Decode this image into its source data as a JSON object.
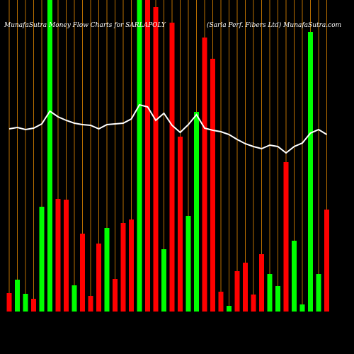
{
  "chart_data": {
    "type": "bar-line",
    "title": "MunafaSutra  Money Flow  Charts for SARLAPOLY",
    "subtitle": "(Sarla  Perf. Fibers Ltd) MunafaSutra.com",
    "values": [
      26,
      45,
      25,
      18,
      148,
      440,
      159,
      158,
      37,
      110,
      22,
      96,
      118,
      46,
      125,
      130,
      440,
      440,
      430,
      88,
      408,
      247,
      135,
      282,
      387,
      357,
      28,
      8,
      57,
      69,
      24,
      81,
      53,
      36,
      211,
      100,
      10,
      395,
      53,
      144
    ],
    "colors": [
      "#ff0000",
      "#00ff00",
      "#00ff00",
      "#ff0000",
      "#00ff00",
      "#00ff00",
      "#ff0000",
      "#ff0000",
      "#00ff00",
      "#ff0000",
      "#ff0000",
      "#ff0000",
      "#00ff00",
      "#ff0000",
      "#ff0000",
      "#ff0000",
      "#00ff00",
      "#ff0000",
      "#ff0000",
      "#00ff00",
      "#ff0000",
      "#ff0000",
      "#00ff00",
      "#00ff00",
      "#ff0000",
      "#ff0000",
      "#ff0000",
      "#00ff00",
      "#ff0000",
      "#ff0000",
      "#ff0000",
      "#ff0000",
      "#00ff00",
      "#00ff00",
      "#ff0000",
      "#00ff00",
      "#00ff00",
      "#00ff00",
      "#00ff00",
      "#ff0000"
    ],
    "line": [
      258,
      260,
      257,
      259,
      265,
      283,
      275,
      270,
      266,
      264,
      263,
      258,
      264,
      265,
      266,
      272,
      292,
      289,
      270,
      280,
      263,
      253,
      264,
      278,
      259,
      256,
      254,
      250,
      243,
      237,
      233,
      230,
      235,
      233,
      224,
      233,
      238,
      252,
      257,
      250
    ],
    "line_color": "#ffffff",
    "grid_color": "#b86e00",
    "ylim": [
      0,
      440
    ]
  }
}
